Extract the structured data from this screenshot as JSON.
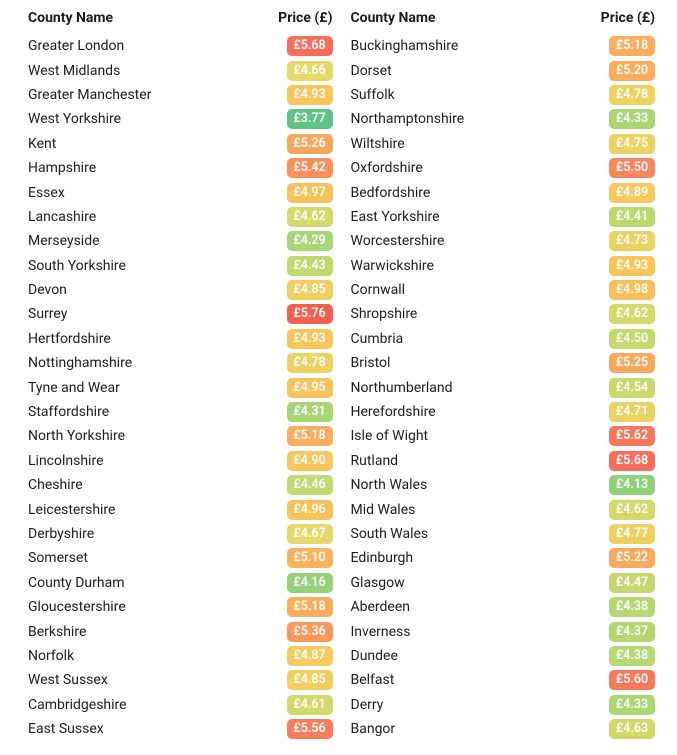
{
  "headers": {
    "county": "County Name",
    "price": "Price (£)"
  },
  "badge_text_color": "#ffffff",
  "columns": [
    [
      {
        "name": "Greater London",
        "price": "£5.68",
        "color": "#f76f5c"
      },
      {
        "name": "West Midlands",
        "price": "£4.66",
        "color": "#e6d96a"
      },
      {
        "name": "Greater Manchester",
        "price": "£4.93",
        "color": "#f7c55a"
      },
      {
        "name": "West Yorkshire",
        "price": "£3.77",
        "color": "#60c284"
      },
      {
        "name": "Kent",
        "price": "£5.26",
        "color": "#f8a65c"
      },
      {
        "name": "Hampshire",
        "price": "£5.42",
        "color": "#f8905c"
      },
      {
        "name": "Essex",
        "price": "£4.97",
        "color": "#f7c25a"
      },
      {
        "name": "Lancashire",
        "price": "£4.62",
        "color": "#d3d96a"
      },
      {
        "name": "Merseyside",
        "price": "£4.29",
        "color": "#a6d675"
      },
      {
        "name": "South Yorkshire",
        "price": "£4.43",
        "color": "#bfd96f"
      },
      {
        "name": "Devon",
        "price": "£4.85",
        "color": "#f2cd5f"
      },
      {
        "name": "Surrey",
        "price": "£5.76",
        "color": "#f25f4c"
      },
      {
        "name": "Hertfordshire",
        "price": "£4.93",
        "color": "#f7c55a"
      },
      {
        "name": "Nottinghamshire",
        "price": "£4.78",
        "color": "#efd160"
      },
      {
        "name": "Tyne and Wear",
        "price": "£4.95",
        "color": "#f7c35a"
      },
      {
        "name": "Staffordshire",
        "price": "£4.31",
        "color": "#a8d675"
      },
      {
        "name": "North Yorkshire",
        "price": "£5.18",
        "color": "#f8ae5c"
      },
      {
        "name": "Lincolnshire",
        "price": "£4.90",
        "color": "#f5c75c"
      },
      {
        "name": "Cheshire",
        "price": "£4.46",
        "color": "#c2d96f"
      },
      {
        "name": "Leicestershire",
        "price": "£4.96",
        "color": "#f7c25a"
      },
      {
        "name": "Derbyshire",
        "price": "£4.67",
        "color": "#e4d96a"
      },
      {
        "name": "Somerset",
        "price": "£5.10",
        "color": "#f8b45c"
      },
      {
        "name": "County Durham",
        "price": "£4.16",
        "color": "#92d278"
      },
      {
        "name": "Gloucestershire",
        "price": "£5.18",
        "color": "#f8ae5c"
      },
      {
        "name": "Berkshire",
        "price": "£5.36",
        "color": "#f8985c"
      },
      {
        "name": "Norfolk",
        "price": "£4.87",
        "color": "#f3cb5e"
      },
      {
        "name": "West Sussex",
        "price": "£4.85",
        "color": "#f2cd5f"
      },
      {
        "name": "Cambridgeshire",
        "price": "£4.61",
        "color": "#d1d96a"
      },
      {
        "name": "East Sussex",
        "price": "£5.56",
        "color": "#f87d5c"
      }
    ],
    [
      {
        "name": "Buckinghamshire",
        "price": "£5.18",
        "color": "#f8ae5c"
      },
      {
        "name": "Dorset",
        "price": "£5.20",
        "color": "#f8ac5c"
      },
      {
        "name": "Suffolk",
        "price": "£4.78",
        "color": "#efd160"
      },
      {
        "name": "Northamptonshire",
        "price": "£4.33",
        "color": "#abd674"
      },
      {
        "name": "Wiltshire",
        "price": "£4.75",
        "color": "#edd261"
      },
      {
        "name": "Oxfordshire",
        "price": "£5.50",
        "color": "#f8855c"
      },
      {
        "name": "Bedfordshire",
        "price": "£4.89",
        "color": "#f4c95d"
      },
      {
        "name": "East Yorkshire",
        "price": "£4.41",
        "color": "#bcd970"
      },
      {
        "name": "Worcestershire",
        "price": "£4.73",
        "color": "#ebd362"
      },
      {
        "name": "Warwickshire",
        "price": "£4.93",
        "color": "#f7c55a"
      },
      {
        "name": "Cornwall",
        "price": "£4.98",
        "color": "#f7c05a"
      },
      {
        "name": "Shropshire",
        "price": "£4.62",
        "color": "#d3d96a"
      },
      {
        "name": "Cumbria",
        "price": "£4.50",
        "color": "#c6d96e"
      },
      {
        "name": "Bristol",
        "price": "£5.25",
        "color": "#f8a85c"
      },
      {
        "name": "Northumberland",
        "price": "£4.54",
        "color": "#cad96c"
      },
      {
        "name": "Herefordshire",
        "price": "£4.71",
        "color": "#e9d463"
      },
      {
        "name": "Isle of Wight",
        "price": "£5.62",
        "color": "#f7765c"
      },
      {
        "name": "Rutland",
        "price": "£5.68",
        "color": "#f76f5c"
      },
      {
        "name": "North Wales",
        "price": "£4.13",
        "color": "#8fd178"
      },
      {
        "name": "Mid Wales",
        "price": "£4.62",
        "color": "#d3d96a"
      },
      {
        "name": "South Wales",
        "price": "£4.77",
        "color": "#eed160"
      },
      {
        "name": "Edinburgh",
        "price": "£5.22",
        "color": "#f8aa5c"
      },
      {
        "name": "Glasgow",
        "price": "£4.47",
        "color": "#c3d96f"
      },
      {
        "name": "Aberdeen",
        "price": "£4.38",
        "color": "#b5d872"
      },
      {
        "name": "Inverness",
        "price": "£4.37",
        "color": "#b3d872"
      },
      {
        "name": "Dundee",
        "price": "£4.38",
        "color": "#b5d872"
      },
      {
        "name": "Belfast",
        "price": "£5.60",
        "color": "#f7795c"
      },
      {
        "name": "Derry",
        "price": "£4.33",
        "color": "#abd674"
      },
      {
        "name": "Bangor",
        "price": "£4.63",
        "color": "#d5d96a"
      }
    ]
  ]
}
